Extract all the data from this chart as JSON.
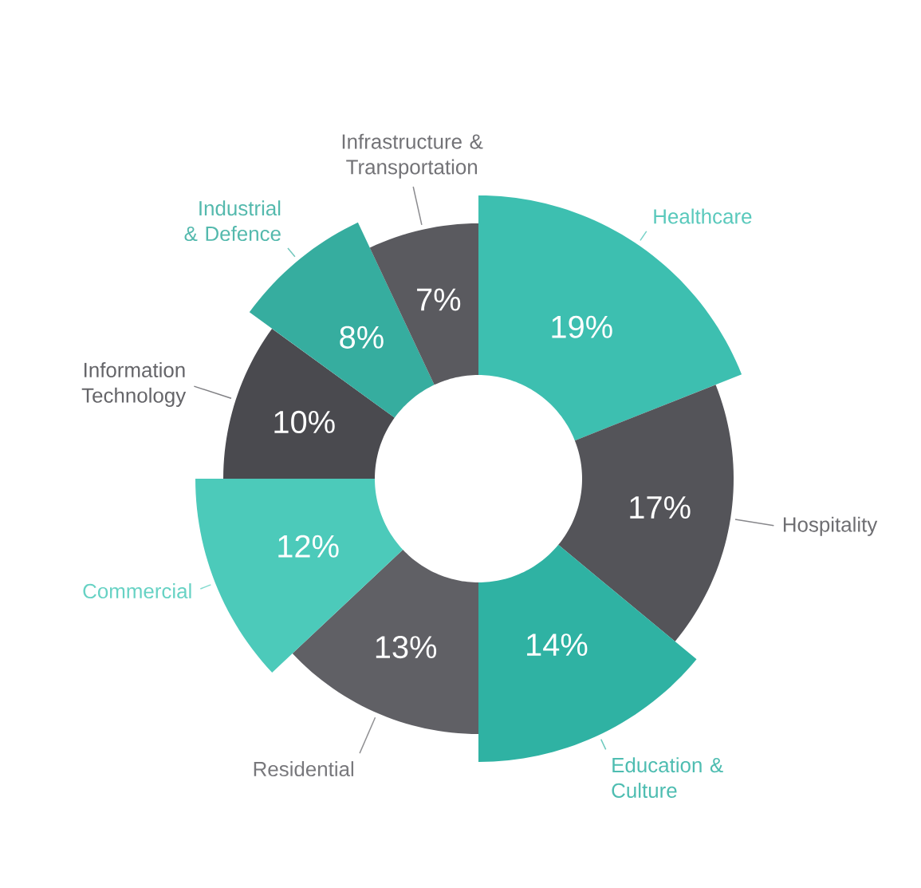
{
  "chart_data": {
    "type": "donut",
    "categories": [
      "Healthcare",
      "Hospitality",
      "Education & Culture",
      "Residential",
      "Commercial",
      "Information Technology",
      "Industrial & Defence",
      "Infrastructure & Transportation"
    ],
    "values": [
      19,
      17,
      14,
      13,
      12,
      10,
      8,
      7
    ],
    "colors": [
      "#3dbfb0",
      "#545459",
      "#2fb2a3",
      "#606065",
      "#4ccaba",
      "#4a4a4f",
      "#36ad9f",
      "#5a5a5f"
    ],
    "value_labels": [
      "19%",
      "17%",
      "14%",
      "13%",
      "12%",
      "10%",
      "8%",
      "7%"
    ]
  }
}
